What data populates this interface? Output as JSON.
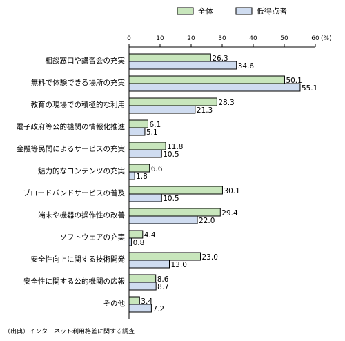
{
  "chart_data": {
    "type": "bar",
    "orientation": "horizontal",
    "categories": [
      "相談窓口や講習会の充実",
      "無料で体験できる場所の充実",
      "教育の現場での積極的な利用",
      "電子政府等公的機関の情報化推進",
      "金融等民間によるサービスの充実",
      "魅力的なコンテンツの充実",
      "ブロードバンドサービスの普及",
      "端末や機器の操作性の改善",
      "ソフトウェアの充実",
      "安全性向上に関する技術開発",
      "安全性に関する公的機関の広報",
      "その他"
    ],
    "series": [
      {
        "name": "全体",
        "values": [
          26.3,
          50.1,
          28.3,
          6.1,
          11.8,
          6.6,
          30.1,
          29.4,
          4.4,
          23.0,
          8.6,
          3.4
        ],
        "labels": [
          "26.3",
          "50.1",
          "28.3",
          "6.1",
          "11.8",
          "6.6",
          "30.1",
          "29.4",
          "4.4",
          "23.0",
          "8.6",
          "3.4"
        ],
        "color": "#c8e6bc"
      },
      {
        "name": "低得点者",
        "values": [
          34.6,
          55.1,
          21.3,
          5.1,
          10.5,
          1.8,
          10.5,
          22.0,
          0.8,
          13.0,
          8.7,
          7.2
        ],
        "labels": [
          "34.6",
          "55.1",
          "21.3",
          "5.1",
          "10.5",
          "1.8",
          "10.5",
          "22.0",
          "0.8",
          "13.0",
          "8.7",
          "7.2"
        ],
        "color": "#cfdcf0"
      }
    ],
    "xlim": [
      0,
      60
    ],
    "x_ticks": [
      "0",
      "10",
      "20",
      "30",
      "40",
      "50",
      "60"
    ],
    "unit_label": "(%)",
    "legend_position": "top-right",
    "grid": false
  },
  "source_note": "（出典）インターネット利用格差に関する調査"
}
